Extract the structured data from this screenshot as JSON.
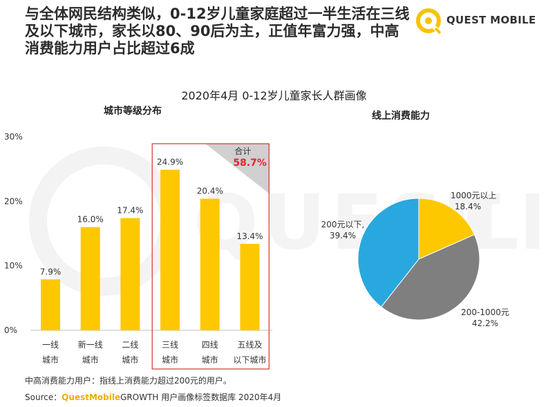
{
  "headline": "与全体网民结构类似，0-12岁儿童家庭超过一半生活在三线及以下城市，家长以80、90后为主，正值年富力强，中高消费能力用户占比超过6成",
  "brand": {
    "name": "QUEST MOBILE",
    "icon": "questmobile-logo-icon",
    "accent": "#f5c400"
  },
  "main_title": "2020年4月 0-12岁儿童家长人群画像",
  "chart_data": [
    {
      "type": "bar",
      "title": "城市等级分布",
      "categories": [
        "一线\n城市",
        "新一线\n城市",
        "二线\n城市",
        "三线\n城市",
        "四线\n城市",
        "五线及\n以下城市"
      ],
      "values": [
        7.9,
        16.0,
        17.4,
        24.9,
        20.4,
        13.4
      ],
      "value_labels": [
        "7.9%",
        "16.0%",
        "17.4%",
        "24.9%",
        "20.4%",
        "13.4%"
      ],
      "ylim": [
        0,
        30
      ],
      "yticks": [
        "0%",
        "10%",
        "20%",
        "30%"
      ],
      "grid": false,
      "bar_color": "#fdc800",
      "highlight": {
        "from_index": 3,
        "to_index": 5,
        "label": "合计",
        "value": "58.7%",
        "border_color": "#d9342b",
        "value_color": "#e8212e"
      }
    },
    {
      "type": "pie",
      "title": "线上消费能力",
      "slices": [
        {
          "label": "1000元以上",
          "value": 18.4,
          "value_label": "18.4%",
          "color": "#fdc800"
        },
        {
          "label": "200-1000元",
          "value": 42.2,
          "value_label": "42.2%",
          "color": "#7f7f7f"
        },
        {
          "label": "200元以下,",
          "value": 39.4,
          "value_label": "39.4%",
          "color": "#29a8df"
        }
      ]
    }
  ],
  "notes": {
    "definition": "中高消费能力用户：指线上消费能力超过200元的用户。",
    "source_prefix": "Source：",
    "source_brand": "QuestMobile",
    "source_rest": "GROWTH 用户画像标签数据库 2020年4月"
  }
}
